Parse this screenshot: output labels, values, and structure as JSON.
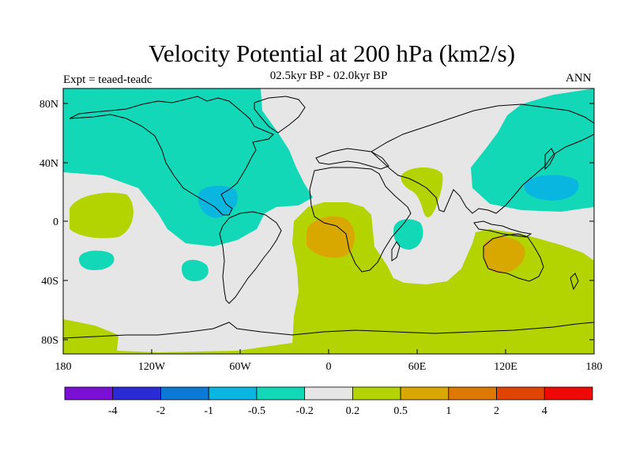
{
  "title": "Velocity Potential at 200 hPa (km2/s)",
  "subtitle": "02.5kyr BP - 02.0kyr BP",
  "left_label": "Expt = teaed-teadc",
  "right_label": "ANN",
  "map": {
    "projection": "cylindrical equidistant",
    "lon_range": [
      -180,
      180
    ],
    "lat_range": [
      -90,
      90
    ],
    "y_ticks": [
      "80N",
      "40N",
      "0",
      "40S",
      "80S"
    ],
    "x_ticks": [
      "180",
      "120W",
      "60W",
      "0",
      "60E",
      "120E",
      "180"
    ]
  },
  "colorbar": {
    "labels": [
      "-4",
      "-2",
      "-1",
      "-0.5",
      "-0.2",
      "0.2",
      "0.5",
      "1",
      "2",
      "4"
    ],
    "colors": [
      "#7a10d6",
      "#2a2ad6",
      "#0a7ad6",
      "#08b6e0",
      "#12d8b8",
      "#e6e6e6",
      "#b4d400",
      "#d8a800",
      "#de7800",
      "#e04400",
      "#ee0808"
    ]
  }
}
